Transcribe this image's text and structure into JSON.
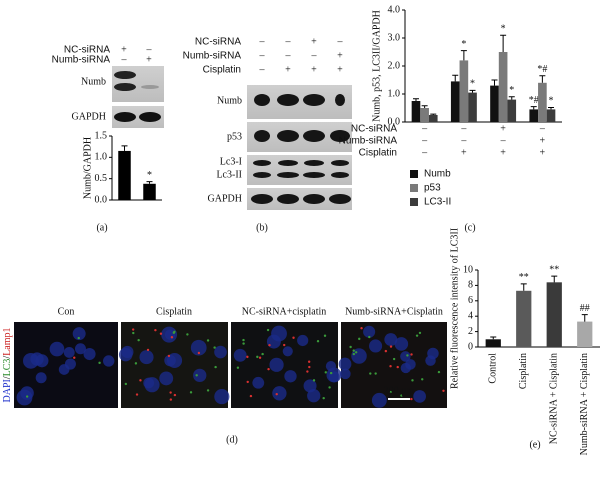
{
  "chart_data": [
    {
      "type": "bar",
      "ylabel": "Numb/GAPDH",
      "categories": [
        null,
        null
      ],
      "values": [
        1.15,
        0.38
      ],
      "errors": [
        0.12,
        0.05
      ],
      "annotations": [
        null,
        "*"
      ],
      "color": "#000000",
      "ylim": [
        0,
        1.5
      ],
      "yticks": [
        {
          "value": 0,
          "label": "0.0"
        },
        {
          "value": 0.5,
          "label": "0.5"
        },
        {
          "value": 1,
          "label": "1.0"
        },
        {
          "value": 1.5,
          "label": "1.5"
        }
      ],
      "caption": "(a)"
    },
    {
      "type": "bar",
      "ylabel": "Numb, p53, LC3II/GAPDH",
      "categories": [
        null,
        null,
        null,
        null
      ],
      "series": [
        {
          "name": "Numb",
          "color": "#111111",
          "values": [
            0.75,
            1.45,
            1.3,
            0.45
          ],
          "errors": [
            0.08,
            0.22,
            0.2,
            0.1
          ],
          "annotations": [
            null,
            null,
            null,
            "*#"
          ]
        },
        {
          "name": "p53",
          "color": "#7a7a7a",
          "values": [
            0.5,
            2.2,
            2.5,
            1.4
          ],
          "errors": [
            0.08,
            0.35,
            0.6,
            0.25
          ],
          "annotations": [
            null,
            "*",
            "*",
            "*#"
          ]
        },
        {
          "name": "LC3-II",
          "color": "#3c3c3c",
          "values": [
            0.25,
            1.05,
            0.8,
            0.45
          ],
          "errors": [
            0.03,
            0.08,
            0.1,
            0.07
          ],
          "annotations": [
            null,
            "*",
            "*",
            "*"
          ]
        }
      ],
      "conditions": [
        {
          "label": "NC-siRNA",
          "signs": [
            "–",
            "–",
            "+",
            "–"
          ]
        },
        {
          "label": "Numb-siRNA",
          "signs": [
            "–",
            "–",
            "–",
            "+"
          ]
        },
        {
          "label": "Cisplatin",
          "signs": [
            "–",
            "+",
            "+",
            "+"
          ]
        }
      ],
      "ylim": [
        0,
        4
      ],
      "yticks": [
        {
          "value": 0,
          "label": "0.0"
        },
        {
          "value": 1,
          "label": "1.0"
        },
        {
          "value": 2,
          "label": "2.0"
        },
        {
          "value": 3,
          "label": "3.0"
        },
        {
          "value": 4,
          "label": "4.0"
        }
      ],
      "caption": "(c)"
    },
    {
      "type": "bar",
      "ylabel": "Relative fluorescence intensity of LC3II",
      "categories": [
        "Control",
        "Cisplatin",
        "NC-siRNA + Cisplatin",
        "Numb-siRNA + Cisplatin"
      ],
      "values": [
        1,
        7.3,
        8.4,
        3.3
      ],
      "errors": [
        0.3,
        0.9,
        0.8,
        0.9
      ],
      "annotations": [
        null,
        "**",
        "**",
        "##"
      ],
      "colors": [
        "#111111",
        "#5a5a5a",
        "#3a3a3a",
        "#a8a8a8"
      ],
      "ylim": [
        0,
        10
      ],
      "yticks": [
        0,
        2,
        4,
        6,
        8,
        10
      ],
      "caption": "(e)"
    }
  ],
  "panel_a": {
    "conditions": [
      {
        "label": "NC-siRNA",
        "signs": [
          "+",
          "–"
        ]
      },
      {
        "label": "Numb-siRNA",
        "signs": [
          "–",
          "+"
        ]
      }
    ],
    "blots": [
      "Numb",
      "GAPDH"
    ]
  },
  "panel_b": {
    "conditions": [
      {
        "label": "NC-siRNA",
        "signs": [
          "–",
          "–",
          "+",
          "–"
        ]
      },
      {
        "label": "Numb-siRNA",
        "signs": [
          "–",
          "–",
          "–",
          "+"
        ]
      },
      {
        "label": "Cisplatin",
        "signs": [
          "–",
          "+",
          "+",
          "+"
        ]
      }
    ],
    "blots": [
      "Numb",
      "p53",
      "Lc3-I",
      "Lc3-II",
      "GAPDH"
    ],
    "caption": "(b)"
  },
  "panel_d": {
    "stain": [
      "DAPI",
      "/",
      "LC3",
      "/",
      "Lamp1"
    ],
    "images": [
      "Con",
      "Cisplatin",
      "NC-siRNA+cisplatin",
      "Numb-siRNA+Cisplatin"
    ],
    "scale": "200 μm",
    "caption": "(d)"
  }
}
